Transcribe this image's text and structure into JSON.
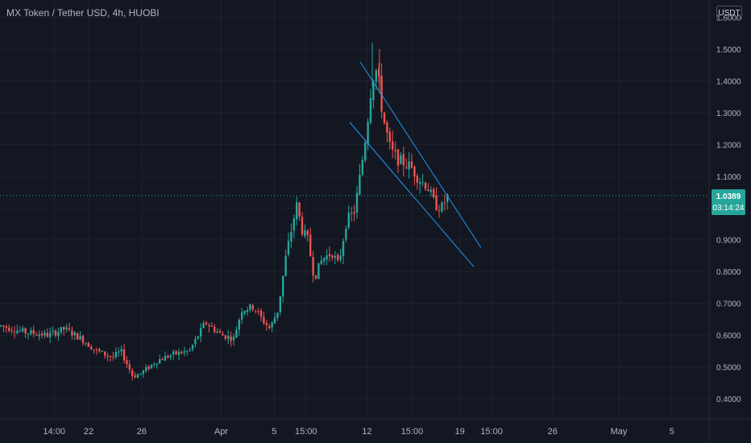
{
  "title": "MX Token / Tether USD, 4h, HUOBI",
  "unit_label": "USDT",
  "current_price": "1.0389",
  "countdown": "03:14:24",
  "colors": {
    "background": "#131722",
    "grid": "#1e222d",
    "axis_text": "#b2b5be",
    "up": "#26a69a",
    "down": "#ef5350",
    "trendline": "#2196f3",
    "price_line": "#26a69a"
  },
  "chart_data": {
    "type": "candlestick",
    "title": "MX Token / Tether USD, 4h, HUOBI",
    "y_axis": {
      "ticks": [
        "0.4000",
        "0.5000",
        "0.6000",
        "0.7000",
        "0.8000",
        "0.9000",
        "1.0000",
        "1.1000",
        "1.2000",
        "1.3000",
        "1.4000",
        "1.5000",
        "1.6000"
      ],
      "range": [
        0.36,
        1.63
      ],
      "position": "right"
    },
    "x_axis": {
      "ticks": [
        "14:00",
        "22",
        "26",
        "Apr",
        "5",
        "15:00",
        "12",
        "15:00",
        "19",
        "15:00",
        "26",
        "May",
        "5"
      ]
    },
    "grid": true,
    "last_price": 1.0389,
    "trendlines": [
      {
        "from": [
          "Apr 12 00:00",
          1.46
        ],
        "to": [
          "Apr 20 00:00",
          0.875
        ]
      },
      {
        "from": [
          "Apr 10 08:00",
          1.27
        ],
        "to": [
          "Apr 19 16:00",
          0.815
        ]
      }
    ],
    "key_prices": [
      {
        "label": "start",
        "value": 0.63
      },
      {
        "label": "low near 26",
        "value": 0.46
      },
      {
        "label": "swing high near 7",
        "value": 1.03
      },
      {
        "label": "dip",
        "value": 0.76
      },
      {
        "label": "peak near 12",
        "value": 1.51
      },
      {
        "label": "channel low",
        "value": 0.96
      }
    ]
  }
}
